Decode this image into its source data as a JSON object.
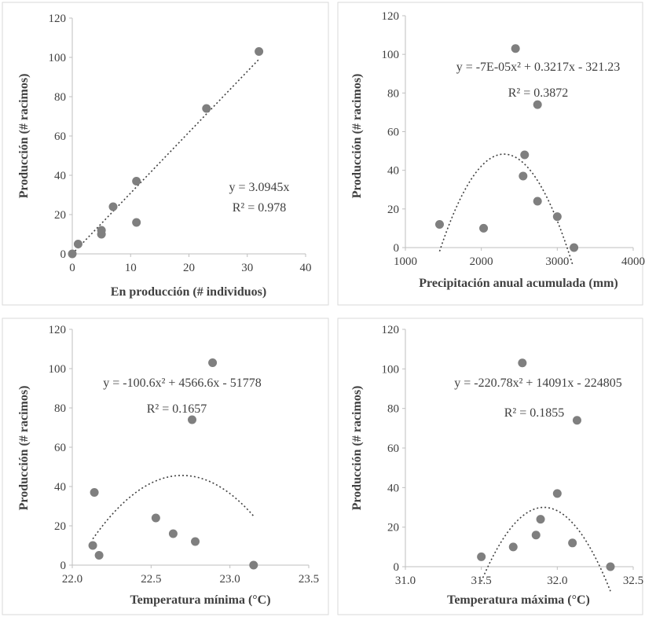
{
  "chart_data": [
    {
      "type": "scatter",
      "xlabel": "En producción (# individuos)",
      "ylabel": "Producción (# racimos)",
      "xlim": [
        0,
        40
      ],
      "ylim": [
        0,
        120
      ],
      "xticks": [
        "0",
        "10",
        "20",
        "30",
        "40"
      ],
      "yticks": [
        "0",
        "20",
        "40",
        "60",
        "80",
        "100",
        "120"
      ],
      "points": [
        {
          "x": 0,
          "y": 0
        },
        {
          "x": 1,
          "y": 5
        },
        {
          "x": 5,
          "y": 12
        },
        {
          "x": 5,
          "y": 10
        },
        {
          "x": 7,
          "y": 24
        },
        {
          "x": 11,
          "y": 37
        },
        {
          "x": 11,
          "y": 16
        },
        {
          "x": 23,
          "y": 74
        },
        {
          "x": 32,
          "y": 103
        }
      ],
      "trendline": {
        "kind": "linear",
        "coef": [
          0,
          3.0945
        ],
        "xrange": [
          0,
          32
        ]
      },
      "equation": "y = 3.0945x",
      "r2": "R² = 0.978",
      "grid": false
    },
    {
      "type": "scatter",
      "xlabel": "Precipitación anual acumulada (mm)",
      "ylabel": "Producción (# racimos)",
      "xlim": [
        1000,
        4000
      ],
      "ylim": [
        0,
        120
      ],
      "xticks": [
        "1000",
        "2000",
        "3000",
        "4000"
      ],
      "yticks": [
        "0",
        "20",
        "40",
        "60",
        "80",
        "100",
        "120"
      ],
      "points": [
        {
          "x": 1450,
          "y": 12
        },
        {
          "x": 2030,
          "y": 10
        },
        {
          "x": 2450,
          "y": 103
        },
        {
          "x": 2550,
          "y": 37
        },
        {
          "x": 2570,
          "y": 48
        },
        {
          "x": 2740,
          "y": 74
        },
        {
          "x": 2740,
          "y": 24
        },
        {
          "x": 3000,
          "y": 16
        },
        {
          "x": 3220,
          "y": 0
        }
      ],
      "trendline": {
        "kind": "poly2",
        "coef": [
          -321.23,
          0.3217,
          -7e-05
        ],
        "xrange": [
          1450,
          3200
        ]
      },
      "equation": "y = -7E-05x² + 0.3217x - 321.23",
      "r2": "R² = 0.3872",
      "grid": false
    },
    {
      "type": "scatter",
      "xlabel": "Temperatura mínima (°C)",
      "ylabel": "Producción (# racimos)",
      "xlim": [
        22.0,
        23.5
      ],
      "ylim": [
        0,
        120
      ],
      "xticks": [
        "22.0",
        "22.5",
        "23.0",
        "23.5"
      ],
      "yticks": [
        "0",
        "20",
        "40",
        "60",
        "80",
        "100",
        "120"
      ],
      "points": [
        {
          "x": 22.13,
          "y": 10
        },
        {
          "x": 22.14,
          "y": 37
        },
        {
          "x": 22.17,
          "y": 5
        },
        {
          "x": 22.53,
          "y": 24
        },
        {
          "x": 22.64,
          "y": 16
        },
        {
          "x": 22.76,
          "y": 74
        },
        {
          "x": 22.78,
          "y": 12
        },
        {
          "x": 22.89,
          "y": 103
        },
        {
          "x": 23.15,
          "y": 0
        }
      ],
      "trendline": {
        "kind": "poly2",
        "coef": [
          -51778,
          4566.6,
          -100.6
        ],
        "xrange": [
          22.13,
          23.15
        ]
      },
      "equation": "y = -100.6x² + 4566.6x - 51778",
      "r2": "R² = 0.1657",
      "grid": false
    },
    {
      "type": "scatter",
      "xlabel": "Temperatura máxima (°C)",
      "ylabel": "Producción (# racimos)",
      "xlim": [
        31.0,
        32.5
      ],
      "ylim": [
        0,
        120
      ],
      "xticks": [
        "31.0",
        "31.5",
        "32.0",
        "32.5"
      ],
      "yticks": [
        "0",
        "20",
        "40",
        "60",
        "80",
        "100",
        "120"
      ],
      "points": [
        {
          "x": 31.5,
          "y": 5
        },
        {
          "x": 31.71,
          "y": 10
        },
        {
          "x": 31.77,
          "y": 103
        },
        {
          "x": 31.86,
          "y": 16
        },
        {
          "x": 31.89,
          "y": 24
        },
        {
          "x": 32.0,
          "y": 37
        },
        {
          "x": 32.1,
          "y": 12
        },
        {
          "x": 32.13,
          "y": 74
        },
        {
          "x": 32.35,
          "y": 0
        }
      ],
      "trendline": {
        "kind": "poly2",
        "coef": [
          -224805,
          14091,
          -220.78
        ],
        "xrange": [
          31.5,
          32.35
        ]
      },
      "equation": "y = -220.78x² + 14091x - 224805",
      "r2": "R² = 0.1855",
      "grid": false
    }
  ],
  "colors": {
    "marker": "#7f7f7f",
    "trendline": "#404040",
    "axis": "#bfbfbf",
    "panel_border": "#d9d9d9",
    "text": "#404040"
  }
}
